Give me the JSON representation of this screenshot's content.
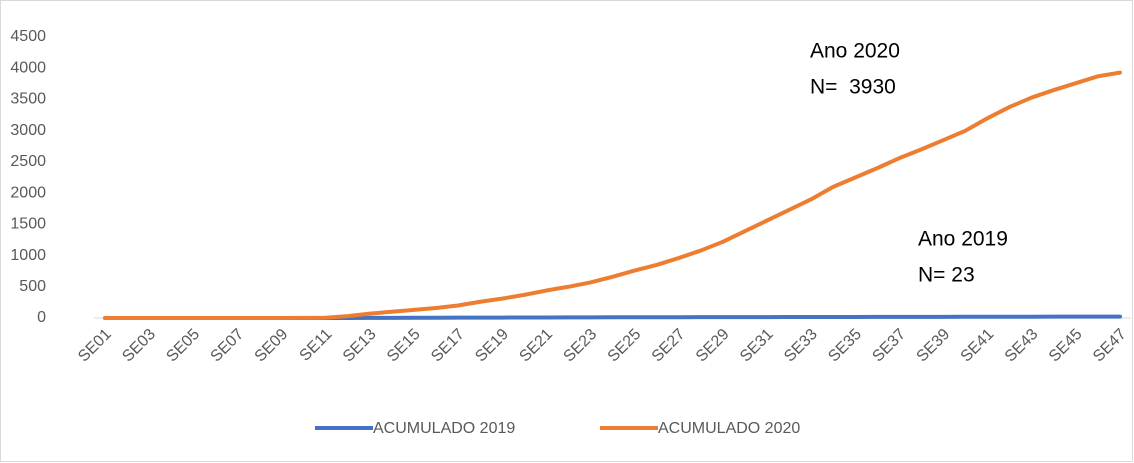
{
  "chart_data": {
    "type": "line",
    "categories": [
      "SE01",
      null,
      "SE03",
      null,
      "SE05",
      null,
      "SE07",
      null,
      "SE09",
      null,
      "SE11",
      null,
      "SE13",
      null,
      "SE15",
      null,
      "SE17",
      null,
      "SE19",
      null,
      "SE21",
      null,
      "SE23",
      null,
      "SE25",
      null,
      "SE27",
      null,
      "SE29",
      null,
      "SE31",
      null,
      "SE33",
      null,
      "SE35",
      null,
      "SE37",
      null,
      "SE39",
      null,
      "SE41",
      null,
      "SE43",
      null,
      "SE45",
      null,
      "SE47"
    ],
    "series": [
      {
        "name": "ACUMULADO 2019",
        "color": "#4472c4",
        "values": [
          0,
          0,
          0,
          0,
          0,
          0,
          0,
          0,
          0,
          0,
          0,
          1,
          2,
          3,
          4,
          5,
          6,
          6,
          7,
          8,
          9,
          10,
          11,
          12,
          12,
          13,
          13,
          14,
          14,
          15,
          15,
          16,
          16,
          17,
          17,
          18,
          18,
          19,
          19,
          20,
          20,
          21,
          21,
          22,
          22,
          22,
          23
        ]
      },
      {
        "name": "ACUMULADO 2020",
        "color": "#ed7d31",
        "values": [
          0,
          0,
          0,
          0,
          0,
          0,
          0,
          0,
          1,
          2,
          5,
          30,
          70,
          100,
          130,
          160,
          200,
          260,
          310,
          370,
          440,
          500,
          570,
          660,
          760,
          850,
          960,
          1080,
          1220,
          1390,
          1560,
          1730,
          1900,
          2100,
          2250,
          2400,
          2560,
          2700,
          2850,
          3000,
          3200,
          3380,
          3530,
          3650,
          3760,
          3870,
          3930
        ]
      }
    ],
    "ylim": [
      0,
      4500
    ],
    "yticks": [
      0,
      500,
      1000,
      1500,
      2000,
      2500,
      3000,
      3500,
      4000,
      4500
    ],
    "grid": false,
    "legend": "bottom",
    "annotations": [
      [
        "Ano 2020",
        "N=  3930"
      ],
      [
        "Ano 2019",
        "N= 23"
      ]
    ]
  }
}
